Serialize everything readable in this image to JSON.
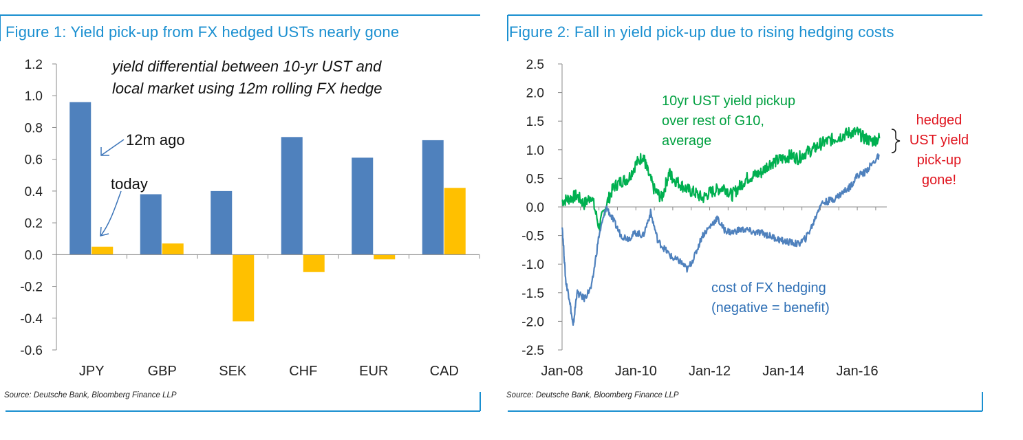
{
  "figure1": {
    "title": "Figure 1: Yield pick-up from FX hedged USTs nearly gone",
    "source": "Source: Deutsche Bank, Bloomberg Finance LLP"
  },
  "figure2": {
    "title": "Figure 2: Fall in yield pick-up due to rising hedging costs",
    "source": "Source: Deutsche Bank, Bloomberg Finance LLP"
  },
  "chart_data": [
    {
      "type": "bar",
      "title": "Figure 1: Yield pick-up from FX hedged USTs nearly gone",
      "annotation": "yield differential between 10-yr UST and local market using 12m rolling FX hedge",
      "annotation_lines": [
        "yield differential between 10-yr UST and",
        "local market using 12m rolling FX hedge"
      ],
      "categories": [
        "JPY",
        "GBP",
        "SEK",
        "CHF",
        "EUR",
        "CAD"
      ],
      "series": [
        {
          "name": "12m ago",
          "color": "#4f81bd",
          "values": [
            0.96,
            0.38,
            0.4,
            0.74,
            0.61,
            0.72
          ]
        },
        {
          "name": "today",
          "color": "#ffc000",
          "values": [
            0.05,
            0.07,
            -0.42,
            -0.11,
            -0.03,
            0.42
          ]
        }
      ],
      "series_labels": [
        "12m ago",
        "today"
      ],
      "ylim": [
        -0.6,
        1.2
      ],
      "yticks": [
        "1.2",
        "1.0",
        "0.8",
        "0.6",
        "0.4",
        "0.2",
        "0.0",
        "-0.2",
        "-0.4",
        "-0.6"
      ],
      "ytick_values": [
        1.2,
        1.0,
        0.8,
        0.6,
        0.4,
        0.2,
        0.0,
        -0.2,
        -0.4,
        -0.6
      ],
      "grid": false
    },
    {
      "type": "line",
      "title": "Figure 2: Fall in yield pick-up due to rising hedging costs",
      "xlim": [
        2008.0,
        2016.8
      ],
      "ylim": [
        -2.5,
        2.5
      ],
      "xticks": [
        "Jan-08",
        "Jan-10",
        "Jan-12",
        "Jan-14",
        "Jan-16"
      ],
      "xtick_values": [
        2008,
        2010,
        2012,
        2014,
        2016
      ],
      "yticks": [
        "2.5",
        "2.0",
        "1.5",
        "1.0",
        "0.5",
        "0.0",
        "-0.5",
        "-1.0",
        "-1.5",
        "-2.0",
        "-2.5"
      ],
      "ytick_values": [
        2.5,
        2.0,
        1.5,
        1.0,
        0.5,
        0.0,
        -0.5,
        -1.0,
        -1.5,
        -2.0,
        -2.5
      ],
      "grid": false,
      "series": [
        {
          "name": "10yr UST yield pickup over rest of G10, average",
          "label_lines": [
            "10yr UST yield pickup",
            "over rest of G10,",
            "average"
          ],
          "color": "#00b050",
          "x": [
            2008.0,
            2008.2,
            2008.4,
            2008.6,
            2008.8,
            2009.0,
            2009.2,
            2009.4,
            2009.6,
            2009.8,
            2010.0,
            2010.2,
            2010.3,
            2010.5,
            2010.7,
            2010.9,
            2011.0,
            2011.2,
            2011.4,
            2011.6,
            2011.8,
            2012.0,
            2012.2,
            2012.4,
            2012.6,
            2012.8,
            2013.0,
            2013.2,
            2013.4,
            2013.6,
            2013.8,
            2014.0,
            2014.2,
            2014.4,
            2014.6,
            2014.8,
            2015.0,
            2015.2,
            2015.4,
            2015.6,
            2015.8,
            2016.0,
            2016.2,
            2016.4,
            2016.6
          ],
          "y": [
            0.1,
            0.15,
            0.2,
            0.05,
            0.2,
            -0.35,
            0.05,
            0.35,
            0.45,
            0.5,
            0.75,
            0.9,
            0.65,
            0.3,
            0.15,
            0.6,
            0.5,
            0.4,
            0.3,
            0.25,
            0.15,
            0.25,
            0.3,
            0.35,
            0.2,
            0.35,
            0.5,
            0.55,
            0.6,
            0.75,
            0.8,
            0.85,
            0.9,
            0.85,
            0.95,
            1.0,
            1.1,
            1.15,
            1.2,
            1.25,
            1.3,
            1.3,
            1.2,
            1.15,
            1.2
          ]
        },
        {
          "name": "cost of FX hedging (negative = benefit)",
          "label_lines": [
            "cost of FX hedging",
            "(negative = benefit)"
          ],
          "color": "#4f81bd",
          "x": [
            2008.0,
            2008.1,
            2008.2,
            2008.3,
            2008.4,
            2008.6,
            2008.8,
            2009.0,
            2009.2,
            2009.4,
            2009.6,
            2009.8,
            2010.0,
            2010.2,
            2010.4,
            2010.6,
            2010.8,
            2011.0,
            2011.2,
            2011.4,
            2011.6,
            2011.8,
            2012.0,
            2012.2,
            2012.4,
            2012.6,
            2012.8,
            2013.0,
            2013.2,
            2013.4,
            2013.6,
            2013.8,
            2014.0,
            2014.2,
            2014.4,
            2014.6,
            2014.8,
            2015.0,
            2015.2,
            2015.4,
            2015.6,
            2015.8,
            2016.0,
            2016.2,
            2016.4,
            2016.6
          ],
          "y": [
            -0.3,
            -1.3,
            -1.6,
            -2.1,
            -1.5,
            -1.6,
            -1.4,
            -0.5,
            0.0,
            -0.25,
            -0.5,
            -0.55,
            -0.45,
            -0.5,
            -0.1,
            -0.6,
            -0.75,
            -0.9,
            -0.95,
            -1.1,
            -0.85,
            -0.5,
            -0.35,
            -0.2,
            -0.4,
            -0.45,
            -0.4,
            -0.4,
            -0.45,
            -0.45,
            -0.5,
            -0.55,
            -0.6,
            -0.62,
            -0.65,
            -0.55,
            -0.3,
            0.05,
            0.1,
            0.15,
            0.25,
            0.35,
            0.55,
            0.6,
            0.75,
            0.9
          ]
        }
      ],
      "annotation": "hedged UST yield pick-up gone!",
      "annotation_lines": [
        "hedged",
        "UST yield",
        "pick-up",
        "gone!"
      ],
      "annotation_color": "#e0141e"
    }
  ]
}
